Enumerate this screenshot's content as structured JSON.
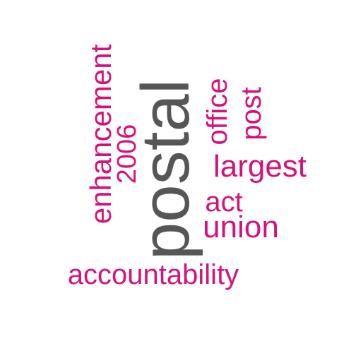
{
  "words": {
    "postal": "postal",
    "enhancement": "enhancement",
    "year": "2006",
    "office": "office",
    "post": "post",
    "largest": "largest",
    "act": "act",
    "union": "union",
    "accountability": "accountability"
  },
  "colors": {
    "primary_word": "#565656",
    "secondary_words": "#d4127a",
    "background": "#ffffff"
  }
}
